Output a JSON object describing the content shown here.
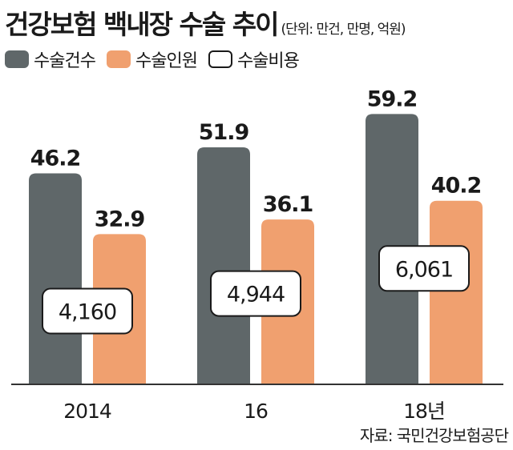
{
  "title": "건강보험 백내장 수술 추이",
  "unit_note": "(단위: 만건, 만명, 억원)",
  "source": "자료: 국민건강보험공단",
  "colors": {
    "count": "#5f6769",
    "patients": "#f0a06f",
    "cost_fill": "#ffffff",
    "cost_border": "#1a1a1a",
    "axis": "#333333"
  },
  "legend": [
    {
      "label": "수술건수",
      "swatch": "count"
    },
    {
      "label": "수술인원",
      "swatch": "patients"
    },
    {
      "label": "수술비용",
      "swatch": "cost_fill"
    }
  ],
  "chart_data": {
    "type": "bar",
    "categories": [
      "2014",
      "16",
      "18년"
    ],
    "series": [
      {
        "name": "수술건수",
        "values": [
          46.2,
          51.9,
          59.2
        ],
        "labels": [
          "46.2",
          "51.9",
          "59.2"
        ]
      },
      {
        "name": "수술인원",
        "values": [
          32.9,
          36.1,
          40.2
        ],
        "labels": [
          "32.9",
          "36.1",
          "40.2"
        ]
      },
      {
        "name": "수술비용",
        "values": [
          4160,
          4944,
          6061
        ],
        "labels": [
          "4,160",
          "4,944",
          "6,061"
        ],
        "display": "boxed-label"
      }
    ],
    "ylim": [
      0,
      64
    ],
    "grid": false,
    "legend_position": "top-left"
  }
}
